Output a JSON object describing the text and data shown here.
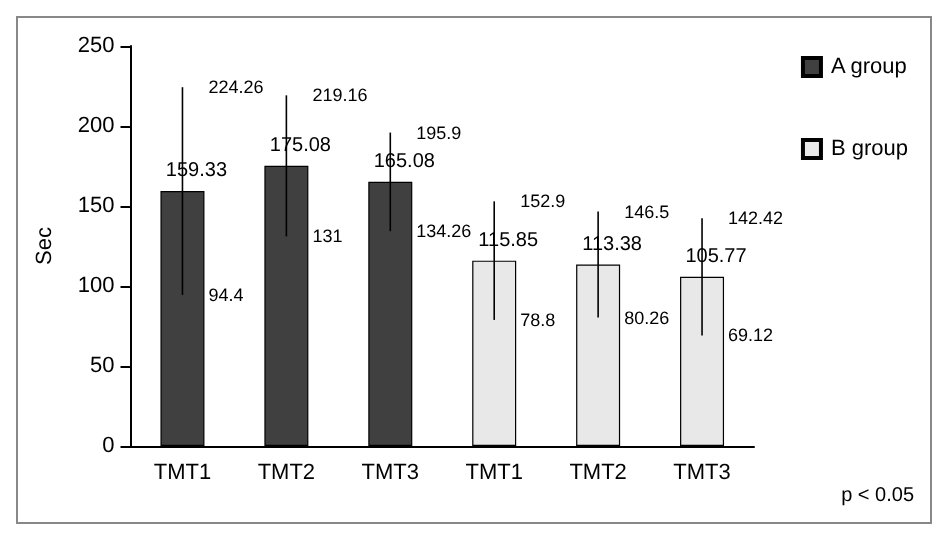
{
  "chart_data": {
    "type": "bar",
    "ylabel": "Sec",
    "categories": [
      "TMT1",
      "TMT2",
      "TMT3",
      "TMT1",
      "TMT2",
      "TMT3"
    ],
    "series": [
      {
        "name": "A group",
        "color": "#404040",
        "values": [
          159.33,
          175.08,
          165.08,
          null,
          null,
          null
        ],
        "errors": [
          [
            94.4,
            224.26
          ],
          [
            131,
            219.16
          ],
          [
            134.26,
            195.9
          ],
          null,
          null,
          null
        ]
      },
      {
        "name": "B group",
        "color": "#e8e8e8",
        "values": [
          null,
          null,
          null,
          115.85,
          113.38,
          105.77
        ],
        "errors": [
          null,
          null,
          null,
          [
            78.8,
            152.9
          ],
          [
            80.26,
            146.5
          ],
          [
            69.12,
            142.42
          ]
        ]
      }
    ],
    "ylim": [
      0,
      250
    ],
    "yticks": [
      0,
      50,
      100,
      150,
      200,
      250
    ],
    "data_labels": true,
    "legend": "top right",
    "grid": false,
    "annotations": [
      "p < 0.05",
      {
        "text": "224.26",
        "x": "TMT1",
        "y": 224.26
      },
      {
        "text": "94.4",
        "x": "TMT1",
        "y": 94.4
      },
      {
        "text": "219.16",
        "x": "TMT2",
        "y": 219.16
      },
      {
        "text": "131",
        "x": "TMT2",
        "y": 131
      },
      {
        "text": "195.9",
        "x": "TMT3",
        "y": 195.9
      },
      {
        "text": "134.26",
        "x": "TMT3",
        "y": 134.26
      },
      "152.9",
      "78.8",
      "146.5",
      "80.26",
      "142.42",
      "69.12"
    ]
  }
}
